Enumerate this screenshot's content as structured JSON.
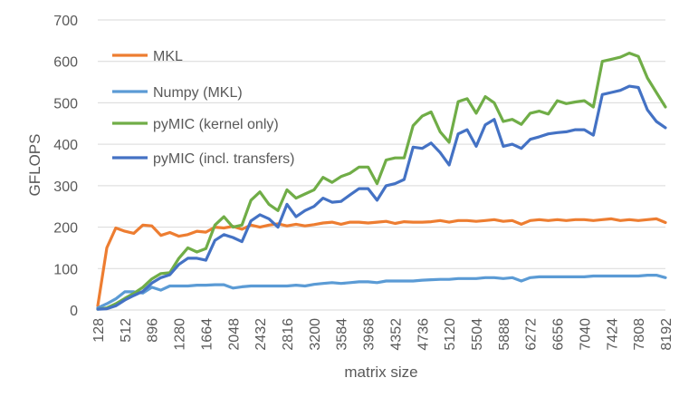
{
  "chart_data": {
    "type": "line",
    "title": "",
    "xlabel": "matrix size",
    "ylabel": "GFLOPS",
    "ylim": [
      0,
      700
    ],
    "yticks": [
      0,
      100,
      200,
      300,
      400,
      500,
      600,
      700
    ],
    "x_tick_labels": [
      "128",
      "512",
      "896",
      "1280",
      "1664",
      "2048",
      "2432",
      "2816",
      "3200",
      "3584",
      "3968",
      "4352",
      "4736",
      "5120",
      "5504",
      "5888",
      "6272",
      "6656",
      "7040",
      "7424",
      "7808",
      "8192"
    ],
    "x_tick_positions": [
      128,
      512,
      896,
      1280,
      1664,
      2048,
      2432,
      2816,
      3200,
      3584,
      3968,
      4352,
      4736,
      5120,
      5504,
      5888,
      6272,
      6656,
      7040,
      7424,
      7808,
      8192
    ],
    "xlim": [
      128,
      8192
    ],
    "grid": "horizontal",
    "legend_position": "top-left",
    "x": [
      128,
      256,
      384,
      512,
      640,
      768,
      896,
      1024,
      1152,
      1280,
      1408,
      1536,
      1664,
      1792,
      1920,
      2048,
      2176,
      2304,
      2432,
      2560,
      2688,
      2816,
      2944,
      3072,
      3200,
      3328,
      3456,
      3584,
      3712,
      3840,
      3968,
      4096,
      4224,
      4352,
      4480,
      4608,
      4736,
      4864,
      4992,
      5120,
      5248,
      5376,
      5504,
      5632,
      5760,
      5888,
      6016,
      6144,
      6272,
      6400,
      6528,
      6656,
      6784,
      6912,
      7040,
      7168,
      7296,
      7424,
      7552,
      7680,
      7808,
      7936,
      8064,
      8192
    ],
    "series": [
      {
        "name": "MKL",
        "color": "#ED7D31",
        "values": [
          10,
          150,
          198,
          190,
          185,
          205,
          203,
          180,
          187,
          178,
          182,
          190,
          188,
          200,
          198,
          202,
          195,
          205,
          200,
          205,
          208,
          203,
          207,
          203,
          206,
          210,
          212,
          207,
          212,
          212,
          210,
          212,
          214,
          209,
          213,
          212,
          212,
          213,
          216,
          212,
          216,
          216,
          214,
          216,
          218,
          214,
          216,
          207,
          216,
          218,
          216,
          218,
          216,
          218,
          218,
          216,
          218,
          220,
          216,
          218,
          216,
          218,
          220,
          211
        ]
      },
      {
        "name": "Numpy (MKL)",
        "color": "#5B9BD5",
        "values": [
          5,
          15,
          27,
          44,
          44,
          41,
          55,
          48,
          58,
          58,
          58,
          60,
          60,
          61,
          61,
          53,
          56,
          58,
          58,
          58,
          58,
          58,
          60,
          58,
          62,
          64,
          66,
          64,
          66,
          68,
          68,
          66,
          70,
          70,
          70,
          70,
          72,
          73,
          74,
          74,
          76,
          76,
          76,
          78,
          78,
          76,
          78,
          70,
          78,
          80,
          80,
          80,
          80,
          80,
          80,
          82,
          82,
          82,
          82,
          82,
          82,
          84,
          84,
          78
        ]
      },
      {
        "name": "pyMIC (kernel only)",
        "color": "#70AD47",
        "values": [
          2,
          5,
          15,
          28,
          40,
          55,
          75,
          88,
          90,
          125,
          150,
          140,
          148,
          205,
          225,
          200,
          205,
          265,
          285,
          255,
          240,
          290,
          270,
          280,
          290,
          320,
          308,
          322,
          330,
          345,
          345,
          305,
          362,
          367,
          367,
          445,
          468,
          478,
          430,
          405,
          503,
          510,
          475,
          515,
          500,
          455,
          460,
          448,
          475,
          480,
          473,
          505,
          498,
          502,
          505,
          490,
          600,
          605,
          610,
          620,
          612,
          560,
          525,
          490
        ]
      },
      {
        "name": "pyMIC (incl. transfers)",
        "color": "#4472C4",
        "values": [
          2,
          3,
          10,
          24,
          35,
          45,
          65,
          78,
          85,
          110,
          125,
          125,
          120,
          168,
          182,
          175,
          165,
          215,
          230,
          220,
          200,
          255,
          225,
          240,
          250,
          270,
          260,
          262,
          278,
          293,
          293,
          265,
          300,
          305,
          315,
          393,
          390,
          403,
          380,
          350,
          425,
          435,
          395,
          447,
          460,
          395,
          400,
          390,
          412,
          418,
          425,
          428,
          430,
          435,
          435,
          422,
          520,
          525,
          530,
          540,
          537,
          483,
          455,
          440
        ]
      }
    ]
  }
}
